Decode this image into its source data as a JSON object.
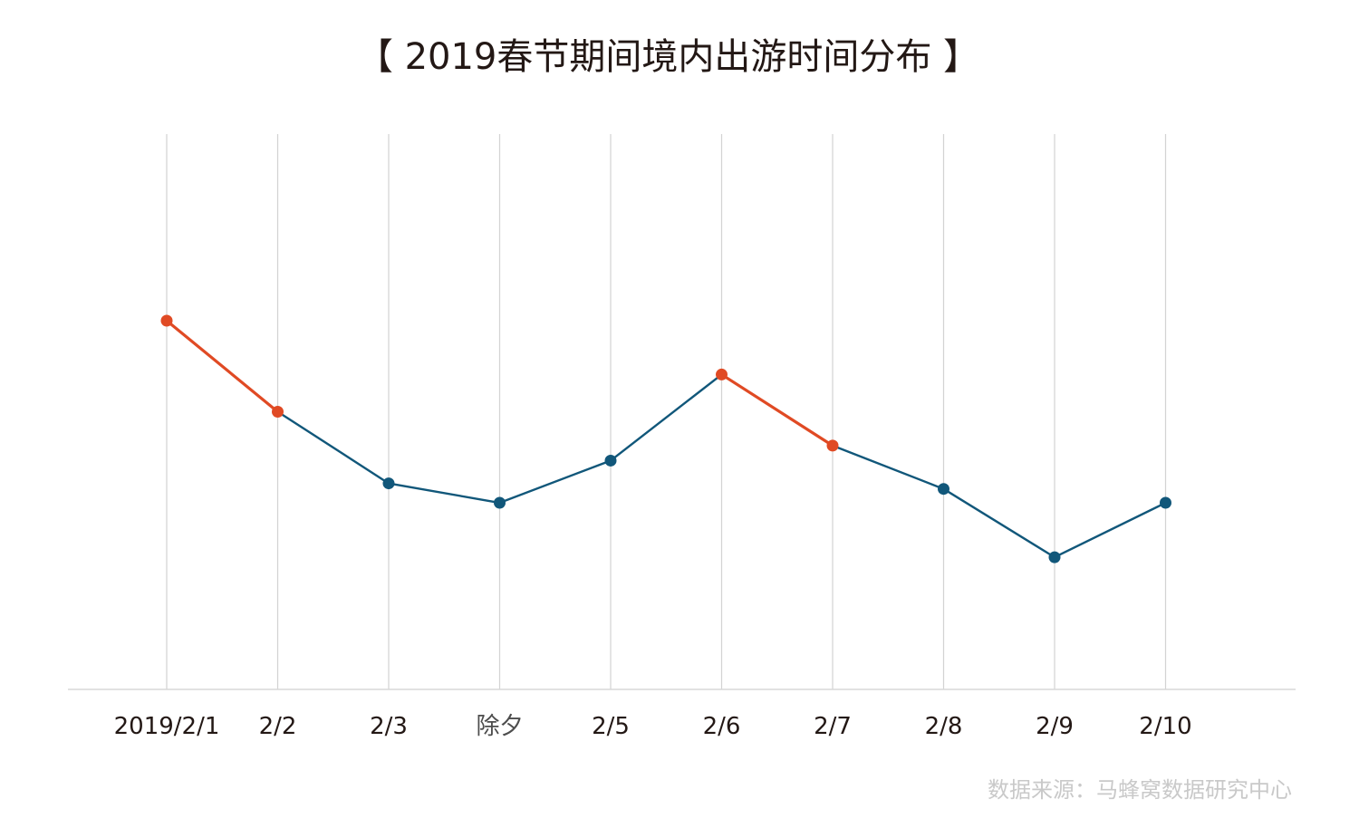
{
  "title": "【 2019春节期间境内出游时间分布 】",
  "source": "数据来源：马蜂窝数据研究中心",
  "colors": {
    "line": "#11577a",
    "highlight": "#e04a24",
    "grid": "#d3d3d3",
    "axis": "#d8d8d8",
    "tick_label": "#231815",
    "special_tick_label": "#4d4d4d"
  },
  "chart_data": {
    "type": "line",
    "title": "【 2019春节期间境内出游时间分布 】",
    "categories": [
      "2019/2/1",
      "2/2",
      "2/3",
      "除夕",
      "2/5",
      "2/6",
      "2/7",
      "2/8",
      "2/9",
      "2/10"
    ],
    "series": [
      {
        "values": [
          66.4,
          50.0,
          37.1,
          33.6,
          41.2,
          56.7,
          43.9,
          36.1,
          23.8,
          33.6
        ]
      }
    ],
    "highlight_segments": [
      [
        0,
        1
      ],
      [
        5,
        6
      ]
    ],
    "ylim": [
      0,
      100
    ],
    "y_axis_visible": false,
    "vertical_gridlines": true,
    "legend": "none"
  }
}
